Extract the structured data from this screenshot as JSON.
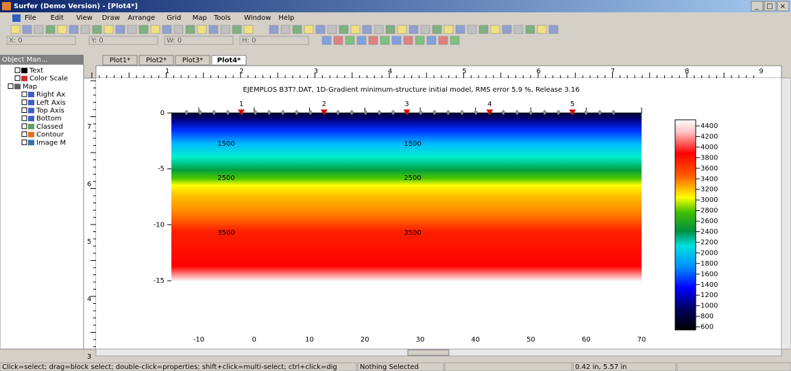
{
  "window": {
    "title": "Surfer (Demo Version) - [Plot4*]"
  },
  "menu": [
    "File",
    "Edit",
    "View",
    "Draw",
    "Arrange",
    "Grid",
    "Map",
    "Tools",
    "Window",
    "Help"
  ],
  "position_bar": [
    "X: 0",
    "Y: 0",
    "W: 0",
    "H: 0"
  ],
  "object_manager": {
    "title": "Object Man...",
    "items": [
      "Text",
      "Color Scale",
      "Map",
      "Right Ax",
      "Left Axis",
      "Top Axis",
      "Bottom",
      "Classed",
      "Contour",
      "Image M"
    ]
  },
  "tabs": [
    "Plot1*",
    "Plot2*",
    "Plot3*",
    "Plot4*"
  ],
  "ruler": {
    "top": [
      "1",
      "2",
      "3",
      "4",
      "5",
      "6",
      "7",
      "8",
      "9"
    ],
    "left": [
      "7",
      "6",
      "5",
      "4",
      "3"
    ]
  },
  "plot": {
    "title": "EJEMPLOS B3T?.DAT,   1D-Gradient minimum-structure initial model,   RMS error 5.9 %,   Release 3.16",
    "y_tick_labels": [
      "0",
      "-5",
      "-10",
      "-15"
    ],
    "x_tick_labels": [
      "-10",
      "0",
      "10",
      "20",
      "30",
      "40",
      "50",
      "60",
      "70"
    ],
    "electrode_labels": [
      "1",
      "2",
      "3",
      "4",
      "5"
    ],
    "contour_labels": [
      "1500",
      "1500",
      "2500",
      "2500",
      "3500",
      "3500"
    ],
    "color_scale_labels": [
      "4400",
      "4200",
      "4000",
      "3800",
      "3600",
      "3400",
      "3200",
      "3000",
      "2800",
      "2600",
      "2400",
      "2200",
      "2000",
      "1800",
      "1600",
      "1400",
      "1200",
      "1000",
      "800",
      "600"
    ]
  },
  "status_bar": [
    "Click=select; drag=block select; double-click=properties; shift+click=multi-select; ctrl+click=dig",
    "Nothing Selected",
    "0.42 in, 5.57 in"
  ]
}
